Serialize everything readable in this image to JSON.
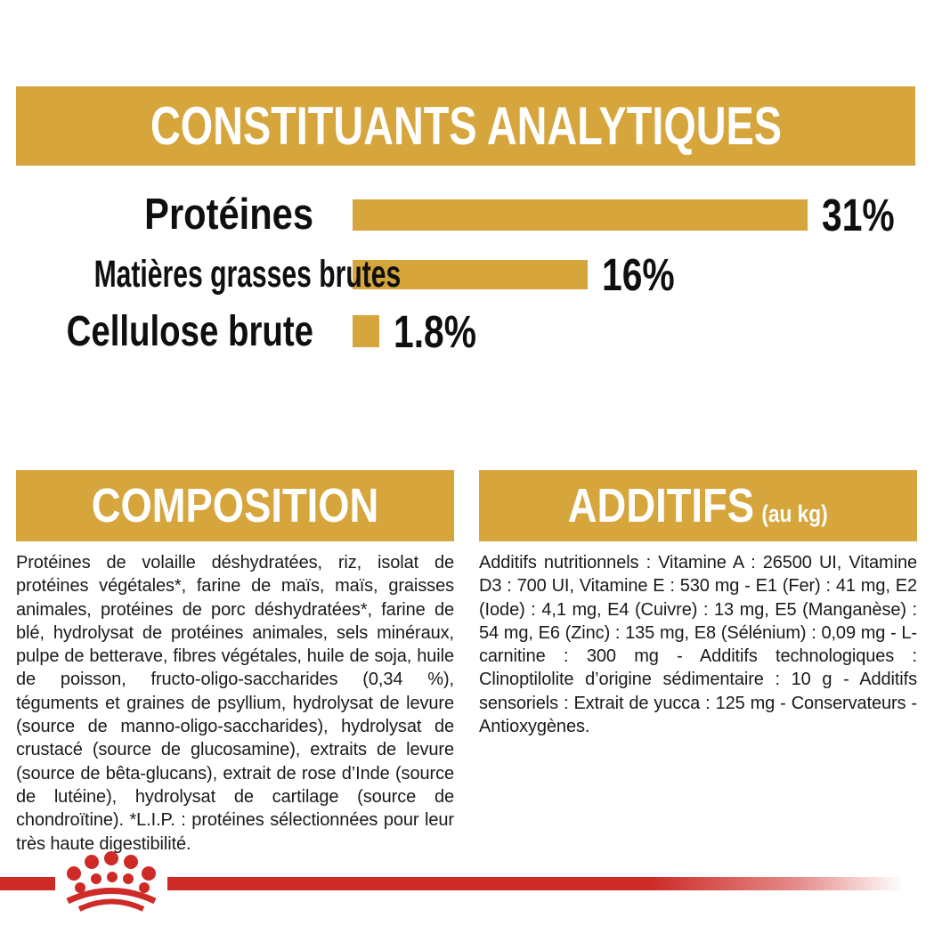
{
  "colors": {
    "gold": "#D6A53C",
    "red": "#CE2B27",
    "ink": "#1a1a1a"
  },
  "analytical_panel": {
    "title": "CONSTITUANTS ANALYTIQUES"
  },
  "chart_data": {
    "type": "bar",
    "orientation": "horizontal",
    "title": "CONSTITUANTS ANALYTIQUES",
    "categories": [
      "Protéines",
      "Matières grasses brutes",
      "Cellulose brute"
    ],
    "values": [
      31,
      16,
      1.8
    ],
    "value_labels": [
      "31%",
      "16%",
      "1.8%"
    ],
    "xlabel": "",
    "ylabel": "",
    "xlim": [
      0,
      31
    ],
    "grid": false,
    "legend": "none",
    "bar_color": "#D6A53C"
  },
  "composition": {
    "title": "COMPOSITION",
    "body": "Protéines de volaille déshydratées, riz, isolat de protéines végétales*, farine de maïs, maïs, graisses animales, protéines de porc déshydratées*, farine de blé, hydrolysat de protéines animales, sels minéraux, pulpe de betterave, fibres végétales, huile de soja, huile de poisson, fructo-oligo-saccharides (0,34 %), téguments et graines de psyllium, hydrolysat de levure (source de manno-oligo-saccharides), hydrolysat de crustacé (source de glucosamine), extraits de levure (source de bêta-glucans), extrait de rose d’Inde (source de lutéine), hydrolysat de cartilage (source de chondroïtine). *L.I.P. : protéines sélectionnées pour leur très haute digestibilité."
  },
  "additifs": {
    "title": "ADDITIFS",
    "subtitle": "(au kg)",
    "body": "Additifs nutritionnels : Vitamine A : 26500 UI, Vitamine D3 : 700 UI, Vitamine E : 530 mg - E1 (Fer) : 41 mg, E2 (Iode) : 4,1 mg, E4 (Cuivre) : 13 mg, E5 (Manganèse) : 54 mg, E6 (Zinc) : 135 mg, E8 (Sélénium) : 0,09 mg - L-carnitine : 300 mg - Additifs technologiques : Clinoptilolite d’origine sédimentaire : 10 g - Additifs sensoriels : Extrait de yucca : 125 mg - Conservateurs - Antioxygènes."
  },
  "footer": {
    "brand_logo": "royal-canin-crown-logo"
  }
}
